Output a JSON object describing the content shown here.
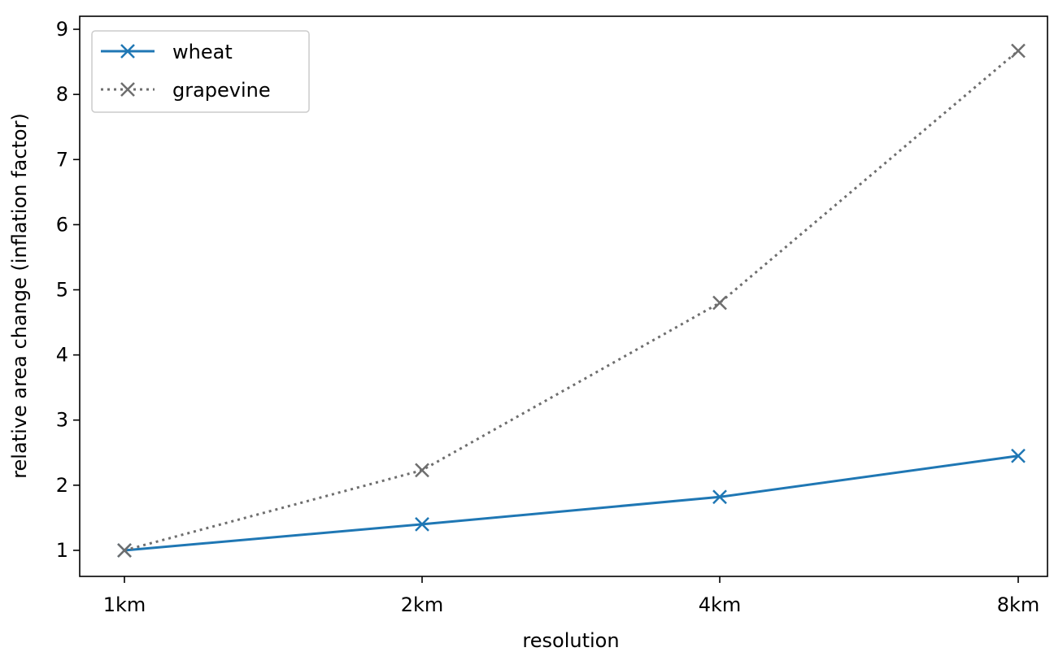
{
  "chart_data": {
    "type": "line",
    "categories": [
      "1km",
      "2km",
      "4km",
      "8km"
    ],
    "series": [
      {
        "name": "wheat",
        "values": [
          1.0,
          1.4,
          1.82,
          2.45
        ],
        "color": "#1f77b4",
        "style": "solid",
        "marker": "x"
      },
      {
        "name": "grapevine",
        "values": [
          1.0,
          2.23,
          4.8,
          8.67
        ],
        "color": "#6e6e6e",
        "style": "dotted",
        "marker": "x"
      }
    ],
    "xlabel": "resolution",
    "ylabel": "relative area change (inflation factor)",
    "ylim": [
      0.6,
      9.2
    ],
    "yticks": [
      "1",
      "2",
      "3",
      "4",
      "5",
      "6",
      "7",
      "8",
      "9"
    ],
    "legend_position": "top-left",
    "grid": false
  }
}
